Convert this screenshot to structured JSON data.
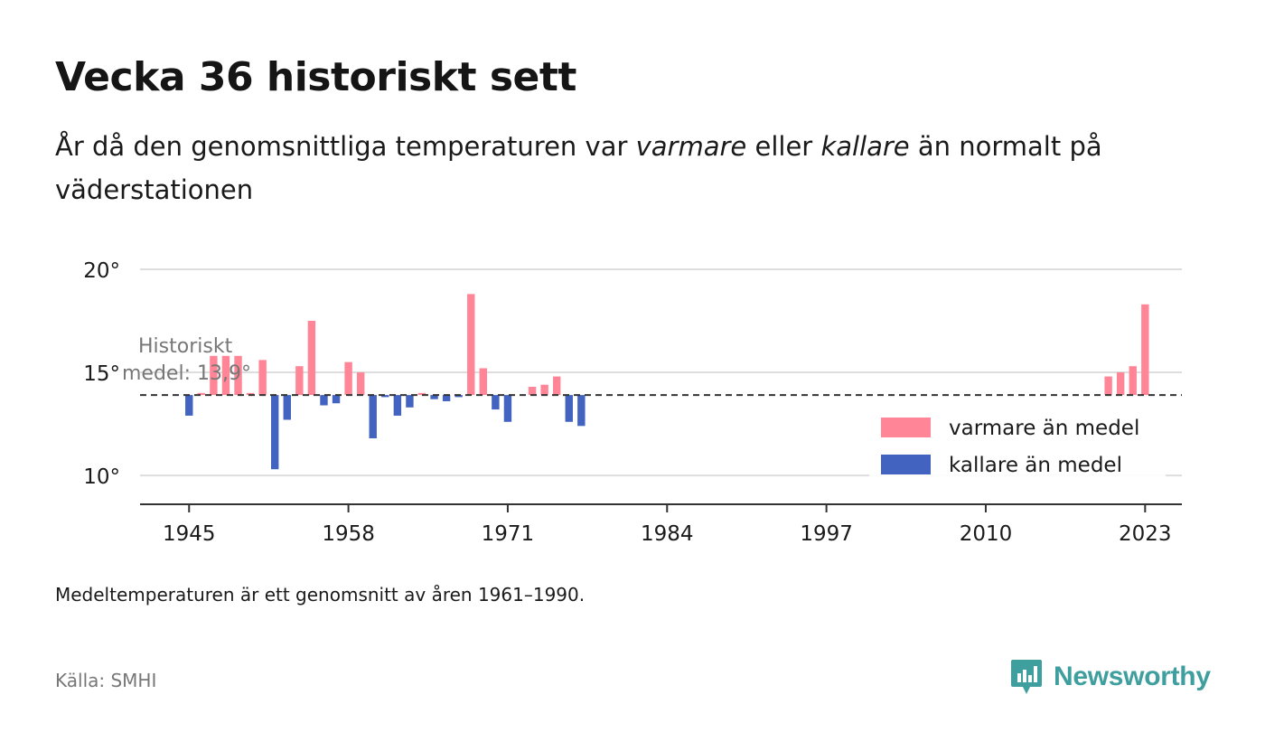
{
  "title": "Vecka 36 historiskt sett",
  "subtitle": {
    "part1": "År då den genomsnittliga temperaturen var ",
    "warm_word": "varmare",
    "part2": " eller ",
    "cold_word": "kallare",
    "part3": " än normalt på väderstationen"
  },
  "note": "Medeltemperaturen är ett genomsnitt av åren 1961–1990.",
  "source": "Källa: SMHI",
  "brand": {
    "name": "Newsworthy",
    "color": "#3f9e9e",
    "icon": "newsworthy-logo-icon"
  },
  "colors": {
    "warm": "#ff8597",
    "cold": "#4264c0",
    "grid": "#dddddd",
    "axis": "#333333",
    "mean_line": "#333333"
  },
  "chart_data": {
    "type": "bar",
    "baseline": 13.9,
    "baseline_label_lines": [
      "Historiskt",
      "medel: 13,9°"
    ],
    "ylim": [
      8.6,
      20
    ],
    "yticks": [
      10,
      15,
      20
    ],
    "ytick_labels": [
      "10°",
      "15°",
      "20°"
    ],
    "xlim": [
      1941,
      2026
    ],
    "xticks": [
      1945,
      1958,
      1971,
      1984,
      1997,
      2010,
      2023
    ],
    "xtick_labels": [
      "1945",
      "1958",
      "1971",
      "1984",
      "1997",
      "2010",
      "2023"
    ],
    "legend": {
      "position": "bottom-right",
      "warm_label": "varmare än medel",
      "cold_label": "kallare än medel"
    },
    "years": [
      1945,
      1946,
      1947,
      1948,
      1949,
      1950,
      1951,
      1952,
      1953,
      1954,
      1955,
      1956,
      1957,
      1958,
      1959,
      1960,
      1961,
      1962,
      1963,
      1964,
      1965,
      1966,
      1967,
      1968,
      1969,
      1970,
      1971,
      1972,
      1973,
      1974,
      1975,
      1976,
      1977,
      2020,
      2021,
      2022,
      2023
    ],
    "values": [
      12.9,
      14.0,
      15.8,
      15.8,
      15.8,
      14.0,
      15.6,
      10.3,
      12.7,
      15.3,
      17.5,
      13.4,
      13.5,
      15.5,
      15.0,
      11.8,
      13.8,
      12.9,
      13.3,
      14.0,
      13.7,
      13.6,
      13.8,
      18.8,
      15.2,
      13.2,
      12.6,
      13.9,
      14.3,
      14.4,
      14.8,
      12.6,
      12.4,
      14.8,
      15.0,
      15.3,
      18.3
    ]
  }
}
